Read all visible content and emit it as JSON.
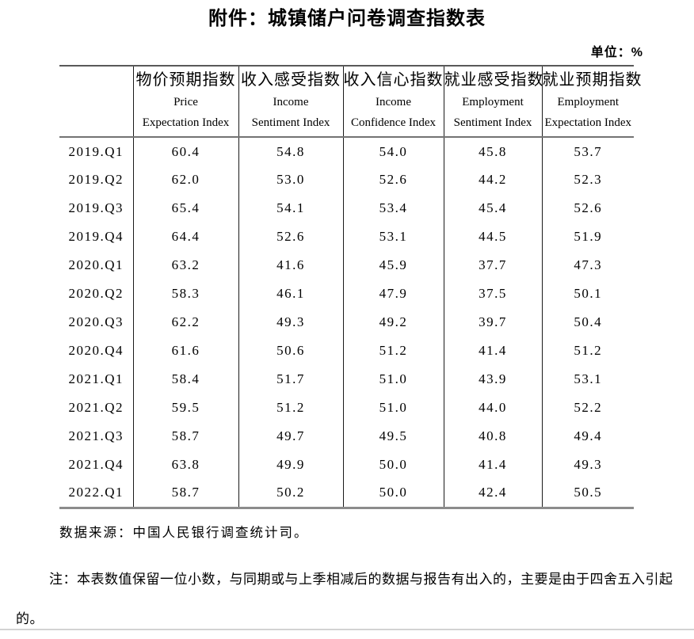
{
  "title": "附件：城镇储户问卷调查指数表",
  "unit_label": "单位：%",
  "table": {
    "columns": [
      {
        "zh": "",
        "en1": "",
        "en2": ""
      },
      {
        "zh": "物价预期指数",
        "en1": "Price",
        "en2": "Expectation Index"
      },
      {
        "zh": "收入感受指数",
        "en1": "Income",
        "en2": "Sentiment Index"
      },
      {
        "zh": "收入信心指数",
        "en1": "Income",
        "en2": "Confidence Index"
      },
      {
        "zh": "就业感受指数",
        "en1": "Employment",
        "en2": "Sentiment Index"
      },
      {
        "zh": "就业预期指数",
        "en1": "Employment",
        "en2": "Expectation Index"
      }
    ],
    "rows": [
      {
        "period": "2019.Q1",
        "values": [
          "60.4",
          "54.8",
          "54.0",
          "45.8",
          "53.7"
        ]
      },
      {
        "period": "2019.Q2",
        "values": [
          "62.0",
          "53.0",
          "52.6",
          "44.2",
          "52.3"
        ]
      },
      {
        "period": "2019.Q3",
        "values": [
          "65.4",
          "54.1",
          "53.4",
          "45.4",
          "52.6"
        ]
      },
      {
        "period": "2019.Q4",
        "values": [
          "64.4",
          "52.6",
          "53.1",
          "44.5",
          "51.9"
        ]
      },
      {
        "period": "2020.Q1",
        "values": [
          "63.2",
          "41.6",
          "45.9",
          "37.7",
          "47.3"
        ]
      },
      {
        "period": "2020.Q2",
        "values": [
          "58.3",
          "46.1",
          "47.9",
          "37.5",
          "50.1"
        ]
      },
      {
        "period": "2020.Q3",
        "values": [
          "62.2",
          "49.3",
          "49.2",
          "39.7",
          "50.4"
        ]
      },
      {
        "period": "2020.Q4",
        "values": [
          "61.6",
          "50.6",
          "51.2",
          "41.4",
          "51.2"
        ]
      },
      {
        "period": "2021.Q1",
        "values": [
          "58.4",
          "51.7",
          "51.0",
          "43.9",
          "53.1"
        ]
      },
      {
        "period": "2021.Q2",
        "values": [
          "59.5",
          "51.2",
          "51.0",
          "44.0",
          "52.2"
        ]
      },
      {
        "period": "2021.Q3",
        "values": [
          "58.7",
          "49.7",
          "49.5",
          "40.8",
          "49.4"
        ]
      },
      {
        "period": "2021.Q4",
        "values": [
          "63.8",
          "49.9",
          "50.0",
          "41.4",
          "49.3"
        ]
      },
      {
        "period": "2022.Q1",
        "values": [
          "58.7",
          "50.2",
          "50.0",
          "42.4",
          "50.5"
        ]
      }
    ]
  },
  "source": "数据来源：中国人民银行调查统计司。",
  "note": "注：本表数值保留一位小数，与同期或与上季相减后的数据与报告有出入的，主要是由于四舍五入引起的。"
}
